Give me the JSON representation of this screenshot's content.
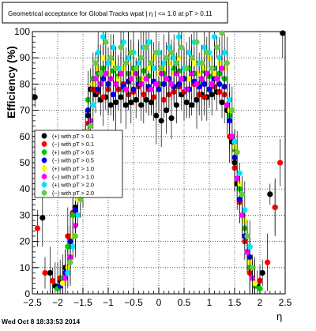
{
  "canvas": {
    "footer": "Wed Oct  8 18:33:53 2014"
  },
  "chart_data": {
    "type": "scatter",
    "title": "Geometrical acceptance for Global Tracks wpat | η | <= 1.0 at pT > 0.11",
    "xlabel": "η",
    "ylabel": "Efficiency (%)",
    "xlim": [
      -2.5,
      2.5
    ],
    "ylim": [
      0,
      100
    ],
    "grid": true,
    "legend_position": "left-middle",
    "x_ticks": [
      "−2.5",
      "−2",
      "−1.5",
      "−1",
      "−0.5",
      "0",
      "0.5",
      "1",
      "1.5",
      "2",
      "2.5"
    ],
    "y_ticks": [
      "0",
      "10",
      "20",
      "30",
      "40",
      "50",
      "60",
      "70",
      "80",
      "90",
      "100"
    ],
    "series": [
      {
        "name": "(+) with pT > 0.1",
        "color": "#000000",
        "x": [
          -2.45,
          -2.3,
          -2.15,
          -2.05,
          -1.95,
          -1.85,
          -1.75,
          -1.65,
          -1.55,
          -1.5,
          -1.45,
          -1.4,
          -1.35,
          -1.25,
          -1.15,
          -1.05,
          -0.95,
          -0.85,
          -0.75,
          -0.65,
          -0.55,
          -0.45,
          -0.35,
          -0.25,
          -0.15,
          -0.05,
          0.05,
          0.15,
          0.25,
          0.35,
          0.45,
          0.55,
          0.65,
          0.75,
          0.85,
          0.95,
          1.05,
          1.15,
          1.25,
          1.35,
          1.45,
          1.5,
          1.55,
          1.65,
          1.75,
          1.85,
          1.95,
          2.05,
          2.2,
          2.3,
          2.45
        ],
        "y": [
          75,
          29,
          8,
          3,
          5,
          10,
          20,
          33,
          45,
          52,
          60,
          68,
          78,
          76,
          74,
          75,
          72,
          73,
          75,
          72,
          73,
          74,
          72,
          74,
          73,
          68,
          66,
          70,
          67,
          72,
          76,
          73,
          72,
          74,
          76,
          75,
          76,
          77,
          73,
          70,
          58,
          50,
          42,
          30,
          16,
          6,
          3,
          8,
          38,
          33,
          100
        ]
      },
      {
        "name": "(−) with pT > 0.1",
        "color": "#ff0000",
        "x": [
          -2.4,
          -2.25,
          -2.1,
          -1.95,
          -1.8,
          -1.7,
          -1.6,
          -1.5,
          -1.45,
          -1.4,
          -1.3,
          -1.2,
          -1.1,
          -1.0,
          -0.9,
          -0.8,
          -0.7,
          -0.6,
          -0.5,
          -0.4,
          -0.3,
          -0.2,
          -0.1,
          0.0,
          0.1,
          0.2,
          0.3,
          0.4,
          0.5,
          0.6,
          0.7,
          0.8,
          0.9,
          1.0,
          1.1,
          1.2,
          1.3,
          1.4,
          1.5,
          1.6,
          1.7,
          1.8,
          1.9,
          2.0,
          2.15,
          2.3,
          2.4
        ],
        "y": [
          25,
          8,
          5,
          6,
          22,
          31,
          42,
          48,
          58,
          65,
          78,
          77,
          75,
          78,
          76,
          78,
          80,
          76,
          77,
          79,
          76,
          78,
          75,
          78,
          74,
          76,
          77,
          79,
          77,
          78,
          80,
          76,
          75,
          78,
          79,
          77,
          76,
          60,
          48,
          35,
          20,
          8,
          4,
          5,
          12,
          33,
          50
        ]
      },
      {
        "name": "(+) with pT > 0.5",
        "color": "#00cc00",
        "x": [
          -2.0,
          -1.9,
          -1.8,
          -1.7,
          -1.6,
          -1.5,
          -1.45,
          -1.4,
          -1.3,
          -1.2,
          -1.1,
          -1.0,
          -0.9,
          -0.8,
          -0.7,
          -0.6,
          -0.5,
          -0.4,
          -0.3,
          -0.2,
          -0.1,
          0.0,
          0.1,
          0.2,
          0.3,
          0.4,
          0.5,
          0.6,
          0.7,
          0.8,
          0.9,
          1.0,
          1.1,
          1.2,
          1.3,
          1.4,
          1.5,
          1.6,
          1.7,
          1.8,
          1.9,
          2.0
        ],
        "y": [
          2,
          6,
          18,
          30,
          40,
          52,
          60,
          74,
          82,
          84,
          86,
          80,
          85,
          83,
          78,
          84,
          86,
          82,
          85,
          83,
          86,
          80,
          84,
          82,
          86,
          85,
          82,
          86,
          84,
          80,
          85,
          83,
          86,
          84,
          82,
          68,
          55,
          40,
          25,
          10,
          3,
          2
        ]
      },
      {
        "name": "(−) with pT > 0.5",
        "color": "#0000ff",
        "x": [
          -1.95,
          -1.85,
          -1.75,
          -1.65,
          -1.55,
          -1.45,
          -1.4,
          -1.3,
          -1.2,
          -1.1,
          -1.0,
          -0.9,
          -0.8,
          -0.7,
          -0.6,
          -0.5,
          -0.4,
          -0.3,
          -0.2,
          -0.1,
          0.0,
          0.1,
          0.2,
          0.3,
          0.4,
          0.5,
          0.6,
          0.7,
          0.8,
          0.9,
          1.0,
          1.1,
          1.2,
          1.3,
          1.4,
          1.5,
          1.6,
          1.7,
          1.8,
          1.9
        ],
        "y": [
          3,
          8,
          20,
          32,
          44,
          56,
          70,
          80,
          78,
          82,
          80,
          76,
          82,
          79,
          81,
          78,
          80,
          82,
          79,
          81,
          78,
          80,
          82,
          79,
          80,
          82,
          78,
          81,
          79,
          80,
          78,
          82,
          80,
          79,
          66,
          52,
          36,
          22,
          14,
          4
        ]
      },
      {
        "name": "(+) with pT > 1.0",
        "color": "#ffff00",
        "x": [
          -1.9,
          -1.8,
          -1.7,
          -1.6,
          -1.5,
          -1.4,
          -1.3,
          -1.2,
          -1.1,
          -1.0,
          -0.9,
          -0.8,
          -0.7,
          -0.6,
          -0.5,
          -0.4,
          -0.3,
          -0.2,
          -0.1,
          0.0,
          0.1,
          0.2,
          0.3,
          0.4,
          0.5,
          0.6,
          0.7,
          0.8,
          0.9,
          1.0,
          1.1,
          1.2,
          1.3,
          1.4,
          1.5,
          1.6,
          1.7,
          1.8,
          1.9
        ],
        "y": [
          4,
          10,
          22,
          36,
          48,
          62,
          80,
          86,
          90,
          84,
          88,
          82,
          86,
          90,
          84,
          88,
          82,
          86,
          90,
          84,
          86,
          88,
          84,
          90,
          86,
          82,
          88,
          84,
          86,
          90,
          84,
          88,
          86,
          70,
          56,
          42,
          28,
          12,
          4
        ]
      },
      {
        "name": "(−) with pT > 1.0",
        "color": "#ff00ff",
        "x": [
          -1.85,
          -1.75,
          -1.65,
          -1.55,
          -1.45,
          -1.35,
          -1.25,
          -1.15,
          -1.05,
          -0.95,
          -0.85,
          -0.75,
          -0.65,
          -0.55,
          -0.45,
          -0.35,
          -0.25,
          -0.15,
          -0.05,
          0.05,
          0.15,
          0.25,
          0.35,
          0.45,
          0.55,
          0.65,
          0.75,
          0.85,
          0.95,
          1.05,
          1.15,
          1.25,
          1.35,
          1.45,
          1.55,
          1.65,
          1.75,
          1.85
        ],
        "y": [
          6,
          14,
          26,
          40,
          54,
          66,
          82,
          80,
          84,
          82,
          80,
          84,
          78,
          82,
          84,
          80,
          82,
          78,
          80,
          84,
          82,
          80,
          84,
          82,
          78,
          84,
          80,
          82,
          84,
          80,
          82,
          86,
          72,
          60,
          44,
          30,
          16,
          6
        ]
      },
      {
        "name": "(+) with pT > 2.0",
        "color": "#00e5ff",
        "x": [
          -1.8,
          -1.7,
          -1.6,
          -1.5,
          -1.4,
          -1.3,
          -1.2,
          -1.1,
          -1.0,
          -0.9,
          -0.8,
          -0.7,
          -0.6,
          -0.5,
          -0.4,
          -0.3,
          -0.2,
          -0.1,
          0.0,
          0.1,
          0.2,
          0.3,
          0.4,
          0.5,
          0.6,
          0.7,
          0.8,
          0.9,
          1.0,
          1.1,
          1.2,
          1.3,
          1.4,
          1.5,
          1.6,
          1.7,
          1.8
        ],
        "y": [
          8,
          18,
          30,
          44,
          58,
          72,
          92,
          98,
          88,
          94,
          86,
          96,
          90,
          92,
          88,
          94,
          96,
          86,
          92,
          88,
          94,
          90,
          98,
          86,
          92,
          96,
          88,
          94,
          92,
          98,
          90,
          92,
          74,
          58,
          46,
          32,
          18
        ]
      },
      {
        "name": "(−) with pT > 2.0",
        "color": "#66cc44",
        "x": [
          -1.75,
          -1.65,
          -1.55,
          -1.45,
          -1.35,
          -1.25,
          -1.15,
          -1.05,
          -0.95,
          -0.85,
          -0.75,
          -0.65,
          -0.55,
          -0.45,
          -0.35,
          -0.25,
          -0.15,
          -0.05,
          0.05,
          0.15,
          0.25,
          0.35,
          0.45,
          0.55,
          0.65,
          0.75,
          0.85,
          0.95,
          1.05,
          1.15,
          1.25,
          1.35,
          1.45,
          1.55,
          1.65,
          1.75,
          1.85
        ],
        "y": [
          12,
          22,
          36,
          50,
          64,
          88,
          84,
          96,
          90,
          86,
          94,
          88,
          92,
          86,
          90,
          94,
          88,
          92,
          86,
          90,
          92,
          88,
          94,
          86,
          90,
          96,
          88,
          92,
          86,
          94,
          100,
          88,
          70,
          54,
          38,
          22,
          10
        ]
      }
    ]
  }
}
